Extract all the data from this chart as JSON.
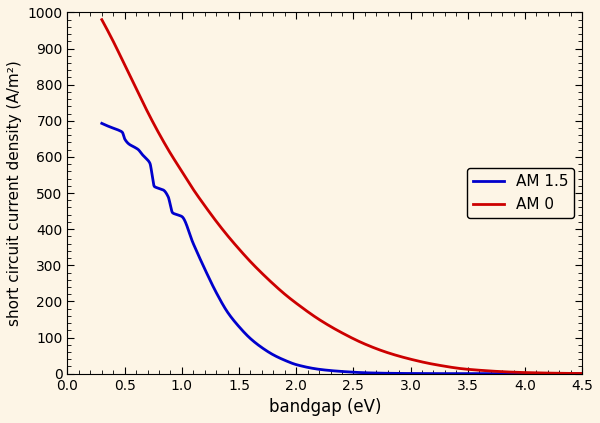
{
  "title": "",
  "xlabel": "bandgap (eV)",
  "ylabel": "short circuit current density (A/m²)",
  "xlim": [
    0,
    4.5
  ],
  "ylim": [
    0,
    1000
  ],
  "xticks": [
    0,
    0.5,
    1.0,
    1.5,
    2.0,
    2.5,
    3.0,
    3.5,
    4.0,
    4.5
  ],
  "yticks": [
    0,
    100,
    200,
    300,
    400,
    500,
    600,
    700,
    800,
    900,
    1000
  ],
  "bg_color": "#fdf5e6",
  "line_am15_color": "#0000cc",
  "line_am0_color": "#cc0000",
  "line_width": 2.0,
  "legend_labels": [
    "AM 1.5",
    "AM 0"
  ],
  "legend_loc": "center right",
  "am0_keypoints_x": [
    0.3,
    0.4,
    0.5,
    0.6,
    0.7,
    0.8,
    0.9,
    1.0,
    1.1,
    1.2,
    1.3,
    1.4,
    1.5,
    1.6,
    1.7,
    1.8,
    1.9,
    2.0,
    2.2,
    2.4,
    2.6,
    2.8,
    3.0,
    3.2,
    3.5,
    4.0,
    4.5
  ],
  "am0_keypoints_y": [
    980,
    920,
    855,
    790,
    725,
    665,
    610,
    560,
    510,
    465,
    422,
    382,
    345,
    310,
    278,
    248,
    220,
    195,
    150,
    113,
    82,
    58,
    40,
    26,
    12,
    3,
    0.5
  ],
  "am15_keypoints_x": [
    0.32,
    0.38,
    0.44,
    0.48,
    0.5,
    0.54,
    0.58,
    0.62,
    0.65,
    0.68,
    0.72,
    0.76,
    0.8,
    0.84,
    0.88,
    0.92,
    0.96,
    1.0,
    1.1,
    1.2,
    1.3,
    1.4,
    1.5,
    1.6,
    1.7,
    1.8,
    1.9,
    2.0,
    2.2,
    2.4,
    2.6,
    2.8,
    3.0,
    3.2,
    3.5,
    4.0,
    4.5
  ],
  "am15_keypoints_y": [
    690,
    682,
    675,
    668,
    650,
    635,
    628,
    620,
    608,
    598,
    583,
    518,
    513,
    508,
    490,
    445,
    440,
    435,
    360,
    290,
    225,
    170,
    130,
    97,
    72,
    52,
    37,
    25,
    12,
    6,
    2.5,
    1.0,
    0.4,
    0.15,
    0.03,
    0.003,
    0.0003
  ]
}
